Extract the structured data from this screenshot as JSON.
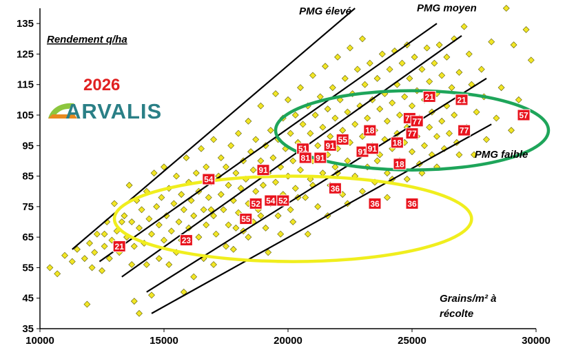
{
  "chart_data": {
    "type": "scatter",
    "xlim": [
      10000,
      30000
    ],
    "ylim": [
      35,
      140
    ],
    "x_ticks": [
      "10000",
      "15000",
      "20000",
      "25000",
      "30000"
    ],
    "y_ticks": [
      "35",
      "45",
      "55",
      "65",
      "75",
      "85",
      "95",
      "105",
      "115",
      "125",
      "135"
    ],
    "ylabel": "Rendement q/ha",
    "xlabel_lines": [
      "Grains/m² à",
      "récolte"
    ],
    "year": "2026",
    "brand": "ARVALIS",
    "colors": {
      "points": "#f2e626",
      "labels": "#e8141e",
      "ellipse_low": "#f0ee1e",
      "ellipse_high": "#1ea55a"
    },
    "annotations": [
      {
        "text": "PMG élevé",
        "x": 21500,
        "y": 138
      },
      {
        "text": "PMG moyen",
        "x": 26400,
        "y": 139
      },
      {
        "text": "PMG faible",
        "x": 28600,
        "y": 91
      }
    ],
    "lines": [
      {
        "name": "iso-pmg-1",
        "x": [
          11300,
          22700
        ],
        "y": [
          61,
          140
        ]
      },
      {
        "name": "iso-pmg-2",
        "x": [
          12400,
          26000
        ],
        "y": [
          57,
          135
        ]
      },
      {
        "name": "iso-pmg-3",
        "x": [
          13300,
          27000
        ],
        "y": [
          52,
          131
        ]
      },
      {
        "name": "iso-pmg-4",
        "x": [
          14300,
          28000
        ],
        "y": [
          47,
          117
        ]
      },
      {
        "name": "iso-pmg-5",
        "x": [
          14500,
          28200
        ],
        "y": [
          40,
          102
        ]
      }
    ],
    "ellipses": [
      {
        "name": "low-yield-zone",
        "cx": 20200,
        "cy": 71,
        "rx": 7200,
        "ry": 14
      },
      {
        "name": "high-yield-zone",
        "cx": 25000,
        "cy": 100,
        "rx": 5500,
        "ry": 13
      }
    ],
    "labeled_points": [
      {
        "label": "21",
        "x": 13200,
        "y": 62
      },
      {
        "label": "23",
        "x": 15900,
        "y": 64
      },
      {
        "label": "54",
        "x": 16800,
        "y": 84
      },
      {
        "label": "91",
        "x": 19000,
        "y": 87
      },
      {
        "label": "55",
        "x": 18300,
        "y": 71
      },
      {
        "label": "52",
        "x": 18700,
        "y": 76
      },
      {
        "label": "54",
        "x": 19300,
        "y": 77
      },
      {
        "label": "52",
        "x": 19800,
        "y": 77
      },
      {
        "label": "51",
        "x": 20600,
        "y": 94
      },
      {
        "label": "81",
        "x": 20700,
        "y": 91
      },
      {
        "label": "91",
        "x": 21300,
        "y": 91
      },
      {
        "label": "91",
        "x": 21700,
        "y": 95
      },
      {
        "label": "55",
        "x": 22200,
        "y": 97
      },
      {
        "label": "36",
        "x": 21900,
        "y": 81
      },
      {
        "label": "91",
        "x": 23000,
        "y": 93
      },
      {
        "label": "18",
        "x": 23300,
        "y": 100
      },
      {
        "label": "91",
        "x": 23400,
        "y": 94
      },
      {
        "label": "36",
        "x": 23500,
        "y": 76
      },
      {
        "label": "18",
        "x": 24400,
        "y": 96
      },
      {
        "label": "18",
        "x": 24500,
        "y": 89
      },
      {
        "label": "77",
        "x": 24900,
        "y": 104
      },
      {
        "label": "77",
        "x": 25200,
        "y": 103
      },
      {
        "label": "77",
        "x": 25000,
        "y": 99
      },
      {
        "label": "36",
        "x": 25000,
        "y": 76
      },
      {
        "label": "21",
        "x": 25700,
        "y": 111
      },
      {
        "label": "21",
        "x": 27000,
        "y": 110
      },
      {
        "label": "77",
        "x": 27100,
        "y": 100
      },
      {
        "label": "57",
        "x": 29500,
        "y": 105
      }
    ],
    "scatter": [
      [
        10400,
        55
      ],
      [
        10700,
        53
      ],
      [
        11000,
        59
      ],
      [
        11300,
        57
      ],
      [
        11500,
        61
      ],
      [
        11800,
        58
      ],
      [
        11900,
        43
      ],
      [
        12000,
        63
      ],
      [
        12100,
        55
      ],
      [
        12200,
        60
      ],
      [
        12300,
        66
      ],
      [
        12500,
        54
      ],
      [
        12600,
        62
      ],
      [
        12700,
        70
      ],
      [
        12800,
        58
      ],
      [
        12900,
        64
      ],
      [
        13000,
        76
      ],
      [
        13100,
        67
      ],
      [
        13200,
        60
      ],
      [
        13400,
        72
      ],
      [
        13500,
        65
      ],
      [
        13600,
        82
      ],
      [
        13700,
        70
      ],
      [
        13800,
        62
      ],
      [
        13800,
        44
      ],
      [
        13900,
        77
      ],
      [
        14000,
        68
      ],
      [
        14000,
        40
      ],
      [
        14100,
        74
      ],
      [
        14200,
        63
      ],
      [
        14300,
        80
      ],
      [
        14400,
        71
      ],
      [
        14500,
        66
      ],
      [
        14500,
        46
      ],
      [
        14600,
        86
      ],
      [
        14700,
        75
      ],
      [
        14800,
        69
      ],
      [
        14900,
        78
      ],
      [
        15000,
        64
      ],
      [
        15000,
        88
      ],
      [
        15100,
        72
      ],
      [
        15200,
        81
      ],
      [
        15300,
        67
      ],
      [
        15400,
        76
      ],
      [
        15500,
        85
      ],
      [
        15500,
        60
      ],
      [
        15600,
        70
      ],
      [
        15700,
        79
      ],
      [
        15800,
        74
      ],
      [
        15800,
        47
      ],
      [
        15900,
        91
      ],
      [
        16000,
        68
      ],
      [
        16000,
        83
      ],
      [
        16100,
        77
      ],
      [
        16200,
        72
      ],
      [
        16300,
        86
      ],
      [
        16400,
        65
      ],
      [
        16400,
        80
      ],
      [
        16500,
        94
      ],
      [
        16600,
        74
      ],
      [
        16700,
        69
      ],
      [
        16700,
        88
      ],
      [
        16800,
        78
      ],
      [
        16900,
        83
      ],
      [
        17000,
        72
      ],
      [
        17000,
        97
      ],
      [
        17100,
        66
      ],
      [
        17200,
        85
      ],
      [
        17300,
        79
      ],
      [
        17300,
        91
      ],
      [
        17400,
        74
      ],
      [
        17500,
        88
      ],
      [
        17600,
        69
      ],
      [
        17600,
        82
      ],
      [
        17700,
        95
      ],
      [
        17800,
        77
      ],
      [
        17800,
        61
      ],
      [
        17900,
        86
      ],
      [
        18000,
        73
      ],
      [
        18000,
        99
      ],
      [
        18100,
        81
      ],
      [
        18200,
        90
      ],
      [
        18200,
        67
      ],
      [
        18300,
        84
      ],
      [
        18400,
        76
      ],
      [
        18400,
        103
      ],
      [
        18500,
        93
      ],
      [
        18600,
        70
      ],
      [
        18600,
        87
      ],
      [
        18700,
        80
      ],
      [
        18700,
        97
      ],
      [
        18800,
        74
      ],
      [
        18900,
        90
      ],
      [
        18900,
        108
      ],
      [
        19000,
        82
      ],
      [
        19100,
        68
      ],
      [
        19100,
        95
      ],
      [
        19200,
        86
      ],
      [
        19300,
        100
      ],
      [
        19300,
        76
      ],
      [
        19400,
        91
      ],
      [
        19500,
        83
      ],
      [
        19500,
        112
      ],
      [
        19600,
        72
      ],
      [
        19600,
        97
      ],
      [
        19700,
        88
      ],
      [
        19800,
        104
      ],
      [
        19800,
        79
      ],
      [
        19900,
        94
      ],
      [
        20000,
        85
      ],
      [
        20000,
        110
      ],
      [
        20100,
        74
      ],
      [
        20100,
        99
      ],
      [
        20200,
        90
      ],
      [
        20300,
        105
      ],
      [
        20300,
        81
      ],
      [
        20400,
        96
      ],
      [
        20500,
        114
      ],
      [
        20500,
        87
      ],
      [
        20600,
        102
      ],
      [
        20700,
        78
      ],
      [
        20700,
        93
      ],
      [
        20800,
        108
      ],
      [
        20900,
        84
      ],
      [
        20900,
        99
      ],
      [
        21000,
        118
      ],
      [
        21000,
        90
      ],
      [
        21100,
        105
      ],
      [
        21200,
        75
      ],
      [
        21200,
        95
      ],
      [
        21300,
        111
      ],
      [
        21400,
        86
      ],
      [
        21400,
        101
      ],
      [
        21500,
        121
      ],
      [
        21600,
        92
      ],
      [
        21600,
        107
      ],
      [
        21700,
        82
      ],
      [
        21700,
        98
      ],
      [
        21800,
        114
      ],
      [
        21900,
        88
      ],
      [
        21900,
        104
      ],
      [
        22000,
        124
      ],
      [
        22000,
        94
      ],
      [
        22100,
        110
      ],
      [
        22200,
        79
      ],
      [
        22200,
        100
      ],
      [
        22300,
        117
      ],
      [
        22400,
        90
      ],
      [
        22400,
        106
      ],
      [
        22500,
        127
      ],
      [
        22500,
        96
      ],
      [
        22600,
        112
      ],
      [
        22700,
        85
      ],
      [
        22700,
        102
      ],
      [
        22800,
        120
      ],
      [
        22900,
        93
      ],
      [
        22900,
        108
      ],
      [
        23000,
        130
      ],
      [
        23000,
        98
      ],
      [
        23100,
        115
      ],
      [
        23200,
        88
      ],
      [
        23200,
        104
      ],
      [
        23300,
        122
      ],
      [
        23400,
        95
      ],
      [
        23400,
        110
      ],
      [
        23500,
        83
      ],
      [
        23500,
        100
      ],
      [
        23600,
        117
      ],
      [
        23700,
        92
      ],
      [
        23700,
        107
      ],
      [
        23800,
        125
      ],
      [
        23900,
        97
      ],
      [
        23900,
        112
      ],
      [
        24000,
        86
      ],
      [
        24000,
        103
      ],
      [
        24100,
        120
      ],
      [
        24200,
        94
      ],
      [
        24200,
        109
      ],
      [
        24300,
        126
      ],
      [
        24400,
        99
      ],
      [
        24400,
        115
      ],
      [
        24500,
        90
      ],
      [
        24500,
        105
      ],
      [
        24600,
        122
      ],
      [
        24700,
        96
      ],
      [
        24700,
        111
      ],
      [
        24800,
        128
      ],
      [
        24800,
        101
      ],
      [
        24900,
        117
      ],
      [
        25000,
        93
      ],
      [
        25000,
        108
      ],
      [
        25100,
        124
      ],
      [
        25200,
        98
      ],
      [
        25200,
        113
      ],
      [
        25300,
        89
      ],
      [
        25300,
        104
      ],
      [
        25400,
        120
      ],
      [
        25500,
        95
      ],
      [
        25500,
        110
      ],
      [
        25600,
        127
      ],
      [
        25700,
        101
      ],
      [
        25700,
        116
      ],
      [
        25800,
        92
      ],
      [
        25800,
        106
      ],
      [
        25900,
        122
      ],
      [
        26000,
        98
      ],
      [
        26000,
        112
      ],
      [
        26100,
        128
      ],
      [
        26200,
        103
      ],
      [
        26200,
        118
      ],
      [
        26300,
        94
      ],
      [
        26400,
        108
      ],
      [
        26400,
        124
      ],
      [
        26500,
        99
      ],
      [
        26600,
        114
      ],
      [
        26700,
        130
      ],
      [
        26700,
        105
      ],
      [
        26800,
        96
      ],
      [
        26900,
        119
      ],
      [
        27000,
        110
      ],
      [
        27100,
        134
      ],
      [
        27200,
        101
      ],
      [
        27300,
        125
      ],
      [
        27400,
        115
      ],
      [
        27500,
        92
      ],
      [
        27600,
        106
      ],
      [
        27800,
        120
      ],
      [
        27900,
        111
      ],
      [
        28000,
        97
      ],
      [
        28200,
        129
      ],
      [
        28400,
        104
      ],
      [
        28600,
        114
      ],
      [
        28800,
        140
      ],
      [
        29000,
        100
      ],
      [
        29100,
        128
      ],
      [
        29300,
        110
      ],
      [
        29600,
        133
      ],
      [
        29800,
        123
      ],
      [
        15200,
        56
      ],
      [
        16600,
        58
      ],
      [
        17500,
        62
      ],
      [
        18400,
        65
      ],
      [
        19200,
        60
      ],
      [
        20200,
        70
      ],
      [
        20800,
        66
      ],
      [
        21600,
        72
      ],
      [
        22400,
        76
      ],
      [
        23000,
        80
      ],
      [
        24000,
        78
      ],
      [
        24800,
        84
      ],
      [
        14800,
        58
      ],
      [
        13700,
        56
      ],
      [
        12600,
        66
      ],
      [
        16200,
        52
      ],
      [
        17000,
        56
      ],
      [
        18900,
        72
      ],
      [
        20400,
        78
      ],
      [
        21000,
        82
      ],
      [
        22000,
        86
      ],
      [
        23600,
        90
      ],
      [
        26000,
        88
      ],
      [
        26900,
        92
      ],
      [
        25400,
        86
      ],
      [
        24200,
        84
      ],
      [
        19700,
        66
      ],
      [
        17900,
        68
      ],
      [
        16900,
        74
      ],
      [
        15700,
        64
      ],
      [
        14300,
        56
      ],
      [
        13300,
        70
      ]
    ]
  }
}
